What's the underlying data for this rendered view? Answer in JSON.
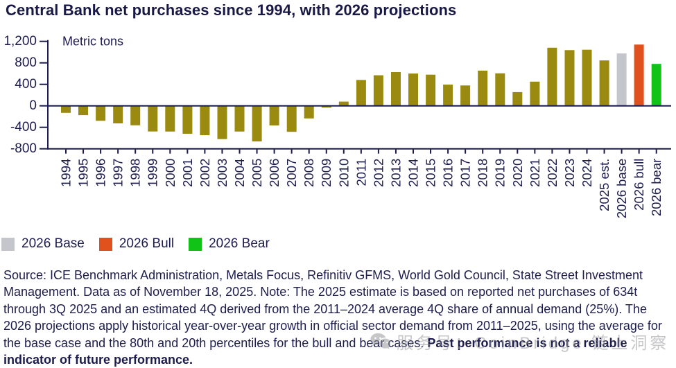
{
  "chart": {
    "title": "Central Bank net purchases since 1994, with 2026 projections"
  },
  "chart_data": {
    "type": "bar",
    "title": "Central Bank net purchases since 1994, with 2026 projections",
    "unit_label": "Metric tons",
    "xlabel": "",
    "ylabel": "Metric tons",
    "ylim": [
      -800,
      1200
    ],
    "yticks": [
      {
        "value": 1200,
        "label": "1,200"
      },
      {
        "value": 800,
        "label": "800"
      },
      {
        "value": 400,
        "label": "400"
      },
      {
        "value": 0,
        "label": "0"
      },
      {
        "value": -400,
        "label": "-400"
      },
      {
        "value": -800,
        "label": "-800"
      }
    ],
    "grid": false,
    "legend_position": "bottom",
    "categories": [
      "1994",
      "1995",
      "1996",
      "1997",
      "1998",
      "1999",
      "2000",
      "2001",
      "2002",
      "2003",
      "2004",
      "2005",
      "2006",
      "2007",
      "2008",
      "2009",
      "2010",
      "2011",
      "2012",
      "2013",
      "2014",
      "2015",
      "2016",
      "2017",
      "2018",
      "2019",
      "2020",
      "2021",
      "2022",
      "2023",
      "2024",
      "2025 est.",
      "2026 base",
      "2026 bull",
      "2026 bear"
    ],
    "values": [
      -130,
      -173,
      -279,
      -326,
      -363,
      -477,
      -479,
      -520,
      -547,
      -620,
      -479,
      -663,
      -365,
      -484,
      -235,
      -34,
      79,
      481,
      569,
      629,
      601,
      580,
      395,
      379,
      656,
      605,
      255,
      450,
      1082,
      1037,
      1045,
      845,
      975,
      1140,
      780
    ],
    "bar_color": "#9a8a10",
    "projection_colors": {
      "2026 base": "#c5c5cc",
      "2026 bull": "#e0511d",
      "2026 bear": "#12c317"
    },
    "axis_color": "#1c1c4f"
  },
  "legend": {
    "items": [
      {
        "label": "2026 Base",
        "color": "#c5c5cc"
      },
      {
        "label": "2026 Bull",
        "color": "#e0511d"
      },
      {
        "label": "2026 Bear",
        "color": "#12c317"
      }
    ]
  },
  "source": {
    "text": "Source: ICE Benchmark Administration, Metals Focus, Refinitiv GFMS, World Gold Council, State Street Investment Management. Data as of November 18, 2025. Note: The 2025 estimate is based on reported net purchases of 634t through 3Q 2025 and an estimated 4Q derived from the 2011–2024 average 4Q share of annual demand (25%). The 2026 projections apply historical year-over-year growth in official sector demand from 2011–2025, using the average for the base case and the 80th and 20th percentiles for the bull and bear cases. ",
    "bold_text": "Past performance is not a reliable indicator of future performance."
  },
  "watermark": {
    "text": "服务号：CoinBridge 链上洞察"
  }
}
